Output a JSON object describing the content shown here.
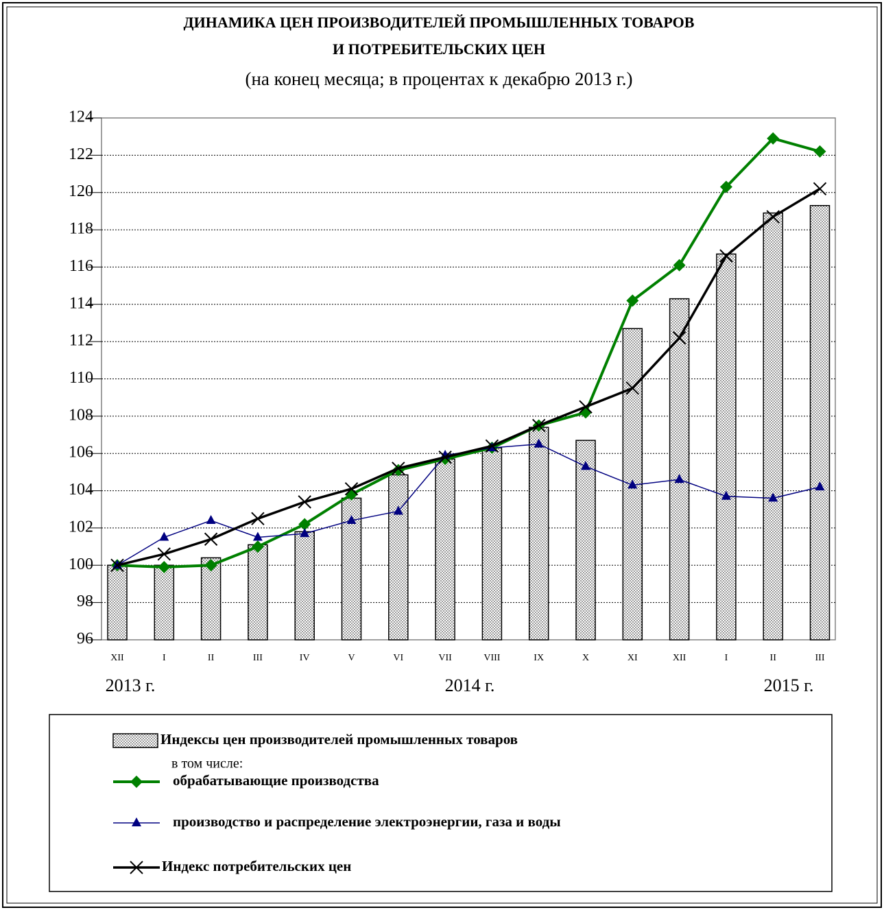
{
  "chart_data": {
    "type": "combo",
    "title_line1": "ДИНАМИКА ЦЕН ПРОИЗВОДИТЕЛЕЙ ПРОМЫШЛЕННЫХ ТОВАРОВ",
    "title_line2": "И ПОТРЕБИТЕЛЬСКИХ ЦЕН",
    "subtitle": "(на конец месяца; в процентах к декабрю 2013 г.)",
    "categories": [
      "XII",
      "I",
      "II",
      "III",
      "IV",
      "V",
      "VI",
      "VII",
      "VIII",
      "IX",
      "X",
      "XI",
      "XII",
      "I",
      "II",
      "III"
    ],
    "year_labels": [
      "2013 г.",
      "2014 г.",
      "2015 г."
    ],
    "legend_note": "в том числе:",
    "ylim": [
      96,
      124
    ],
    "yticks": [
      96,
      98,
      100,
      102,
      104,
      106,
      108,
      110,
      112,
      114,
      116,
      118,
      120,
      122,
      124
    ],
    "grid": true,
    "series": [
      {
        "name": "Индексы цен производителей промышленных товаров",
        "kind": "bar",
        "color": "#000000",
        "values": [
          100,
          100.0,
          100.4,
          101.1,
          101.8,
          103.6,
          104.85,
          105.7,
          106.3,
          107.4,
          106.7,
          112.7,
          114.3,
          116.7,
          118.9,
          119.3
        ]
      },
      {
        "name": "обрабатывающие производства",
        "kind": "line",
        "marker": "diamond",
        "color": "#008000",
        "values": [
          100,
          99.9,
          100.0,
          101.0,
          102.2,
          103.8,
          105.1,
          105.7,
          106.3,
          107.5,
          108.2,
          114.2,
          116.1,
          120.3,
          122.9,
          122.2
        ]
      },
      {
        "name": "производство и распределение электроэнергии, газа и воды",
        "kind": "line",
        "marker": "triangle",
        "color": "#000080",
        "values": [
          100,
          101.5,
          102.4,
          101.5,
          101.7,
          102.4,
          102.9,
          105.9,
          106.3,
          106.5,
          105.3,
          104.3,
          104.6,
          103.7,
          103.6,
          104.2
        ]
      },
      {
        "name": "Индекс потребительских цен",
        "kind": "line",
        "marker": "x",
        "color": "#000000",
        "values": [
          100,
          100.6,
          101.4,
          102.5,
          103.4,
          104.1,
          105.2,
          105.8,
          106.4,
          107.5,
          108.5,
          109.5,
          112.2,
          116.6,
          118.7,
          120.2
        ]
      }
    ]
  }
}
